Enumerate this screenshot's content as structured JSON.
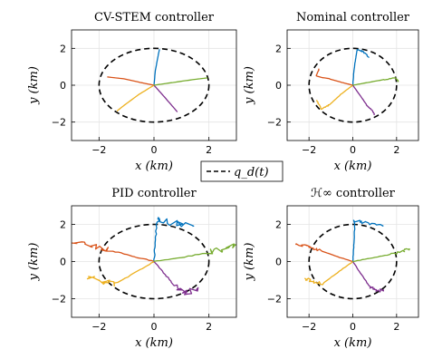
{
  "figure": {
    "legend_label": "q_d(t)",
    "colors": [
      "#0072BD",
      "#D95319",
      "#EDB120",
      "#7E2F8E",
      "#77AC30"
    ],
    "reference_color": "#000000"
  },
  "chart_data": [
    {
      "type": "line",
      "title": "CV-STEM controller",
      "xlabel": "x (km)",
      "ylabel": "y (km)",
      "xlim": [
        -3,
        3
      ],
      "ylim": [
        -3,
        3
      ],
      "xticks": [
        -2,
        0,
        2
      ],
      "yticks": [
        -2,
        0,
        2
      ],
      "grid": true,
      "noise": 0.0,
      "reference": {
        "center": [
          0,
          0
        ],
        "rx": 2,
        "ry": 2
      },
      "series": [
        {
          "x": [
            0,
            0.05,
            0.15,
            0.2
          ],
          "y": [
            0,
            0.8,
            1.6,
            1.95
          ]
        },
        {
          "x": [
            0,
            -0.5,
            -1.1,
            -1.7
          ],
          "y": [
            0,
            0.15,
            0.35,
            0.45
          ]
        },
        {
          "x": [
            0,
            -0.55,
            -1.05,
            -1.35
          ],
          "y": [
            0,
            -0.5,
            -1.05,
            -1.4
          ]
        },
        {
          "x": [
            0,
            0.3,
            0.65,
            0.85
          ],
          "y": [
            0,
            -0.5,
            -1.1,
            -1.45
          ]
        },
        {
          "x": [
            0,
            0.7,
            1.4,
            1.95
          ],
          "y": [
            0,
            0.15,
            0.3,
            0.4
          ]
        }
      ]
    },
    {
      "type": "line",
      "title": "Nominal controller",
      "xlabel": "x (km)",
      "ylabel": "y (km)",
      "xlim": [
        -3,
        3
      ],
      "ylim": [
        -3,
        3
      ],
      "xticks": [
        -2,
        0,
        2
      ],
      "yticks": [
        -2,
        0,
        2
      ],
      "grid": true,
      "noise": 0.05,
      "reference": {
        "center": [
          0,
          0
        ],
        "rx": 2,
        "ry": 2
      },
      "series": [
        {
          "x": [
            0,
            0.05,
            0.15,
            0.2,
            0.5,
            0.75
          ],
          "y": [
            0,
            0.8,
            1.6,
            1.95,
            1.8,
            1.5
          ]
        },
        {
          "x": [
            0,
            -0.5,
            -1.1,
            -1.65,
            -1.55
          ],
          "y": [
            0,
            0.15,
            0.35,
            0.5,
            0.9
          ]
        },
        {
          "x": [
            0,
            -0.55,
            -1.05,
            -1.45,
            -1.65
          ],
          "y": [
            0,
            -0.5,
            -1.05,
            -1.3,
            -0.8
          ]
        },
        {
          "x": [
            0,
            0.3,
            0.65,
            0.9,
            1.0
          ],
          "y": [
            0,
            -0.5,
            -1.1,
            -1.4,
            -1.6
          ]
        },
        {
          "x": [
            0,
            0.7,
            1.4,
            1.95,
            2.1
          ],
          "y": [
            0,
            0.15,
            0.3,
            0.4,
            0.2
          ]
        }
      ]
    },
    {
      "type": "line",
      "title": "PID controller",
      "xlabel": "x (km)",
      "ylabel": "y (km)",
      "xlim": [
        -3,
        3
      ],
      "ylim": [
        -3,
        3
      ],
      "xticks": [
        -2,
        0,
        2
      ],
      "yticks": [
        -2,
        0,
        2
      ],
      "grid": true,
      "noise": 0.3,
      "reference": {
        "center": [
          0,
          0
        ],
        "rx": 2,
        "ry": 2
      },
      "series": [
        {
          "x": [
            0,
            0.05,
            0.1,
            0.6,
            1.4
          ],
          "y": [
            0,
            1.0,
            2.3,
            2.1,
            1.9
          ]
        },
        {
          "x": [
            0,
            -0.8,
            -1.6,
            -2.2,
            -3.0
          ],
          "y": [
            0,
            0.3,
            0.6,
            0.8,
            1.0
          ]
        },
        {
          "x": [
            0,
            -0.7,
            -1.4,
            -1.9,
            -2.4
          ],
          "y": [
            0,
            -0.6,
            -1.2,
            -1.1,
            -0.8
          ]
        },
        {
          "x": [
            0,
            0.4,
            0.8,
            1.2,
            1.6
          ],
          "y": [
            0,
            -0.7,
            -1.4,
            -1.7,
            -1.5
          ]
        },
        {
          "x": [
            0,
            1.0,
            2.0,
            2.6,
            3.0
          ],
          "y": [
            0,
            0.2,
            0.5,
            0.7,
            0.9
          ]
        }
      ]
    },
    {
      "type": "line",
      "title": "ℋ∞ controller",
      "xlabel": "x (km)",
      "ylabel": "y (km)",
      "xlim": [
        -3,
        3
      ],
      "ylim": [
        -3,
        3
      ],
      "xticks": [
        -2,
        0,
        2
      ],
      "yticks": [
        -2,
        0,
        2
      ],
      "grid": true,
      "noise": 0.15,
      "reference": {
        "center": [
          0,
          0
        ],
        "rx": 2,
        "ry": 2
      },
      "series": [
        {
          "x": [
            0,
            0.05,
            0.1,
            0.6,
            1.4
          ],
          "y": [
            0,
            1.0,
            2.2,
            2.1,
            1.9
          ]
        },
        {
          "x": [
            0,
            -0.8,
            -1.5,
            -2.0,
            -2.6
          ],
          "y": [
            0,
            0.3,
            0.6,
            0.8,
            0.9
          ]
        },
        {
          "x": [
            0,
            -0.7,
            -1.4,
            -1.8,
            -2.2
          ],
          "y": [
            0,
            -0.6,
            -1.2,
            -1.1,
            -0.9
          ]
        },
        {
          "x": [
            0,
            0.4,
            0.8,
            1.1,
            1.4
          ],
          "y": [
            0,
            -0.7,
            -1.4,
            -1.6,
            -1.5
          ]
        },
        {
          "x": [
            0,
            0.9,
            1.8,
            2.3,
            2.6
          ],
          "y": [
            0,
            0.2,
            0.4,
            0.6,
            0.7
          ]
        }
      ]
    }
  ]
}
